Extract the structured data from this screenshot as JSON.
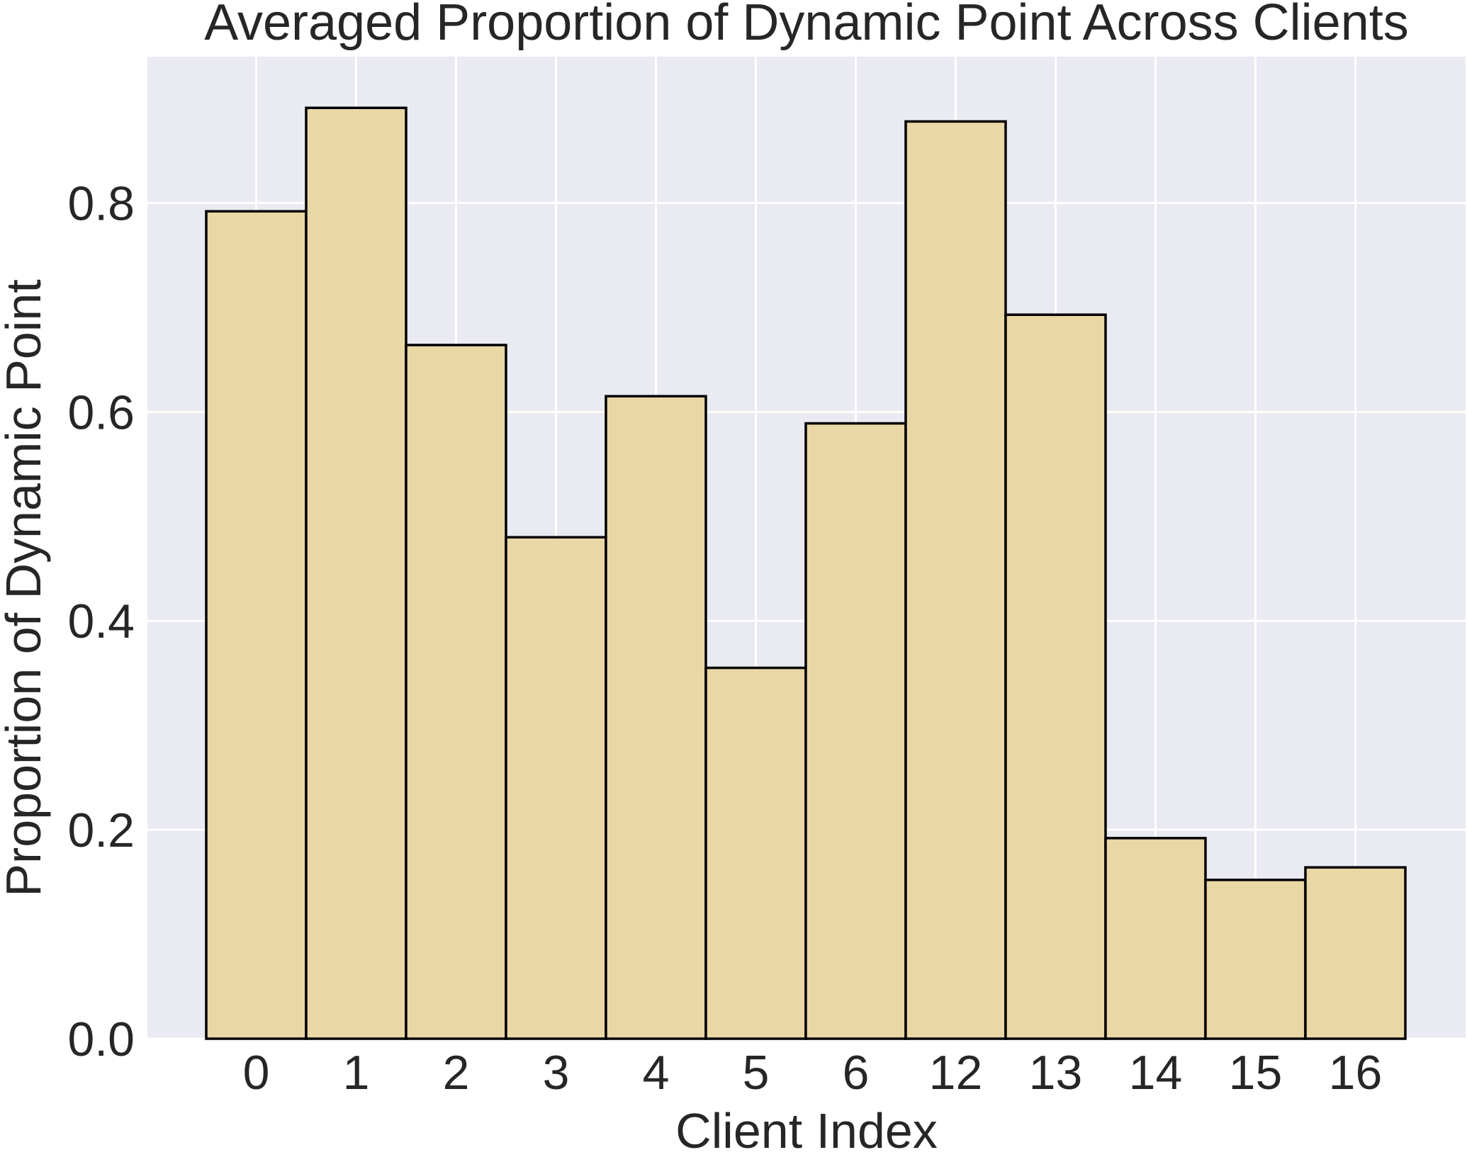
{
  "chart_data": {
    "type": "bar",
    "title": "Averaged Proportion of Dynamic Point Across Clients",
    "xlabel": "Client Index",
    "ylabel": "Proportion of Dynamic Point",
    "categories": [
      "0",
      "1",
      "2",
      "3",
      "4",
      "5",
      "6",
      "12",
      "13",
      "14",
      "15",
      "16"
    ],
    "values": [
      0.792,
      0.891,
      0.664,
      0.48,
      0.615,
      0.355,
      0.589,
      0.878,
      0.693,
      0.192,
      0.152,
      0.164
    ],
    "ylim": [
      0,
      0.94
    ],
    "yticks": [
      "0.0",
      "0.2",
      "0.4",
      "0.6",
      "0.8"
    ],
    "ytick_values": [
      0,
      0.2,
      0.4,
      0.6,
      0.8
    ],
    "grid": true,
    "colors": {
      "background": "#EAEAF2",
      "bar_fill": "#EAD7A6",
      "bar_edge": "#000000",
      "grid": "#FFFFFF",
      "text": "#262626"
    }
  }
}
